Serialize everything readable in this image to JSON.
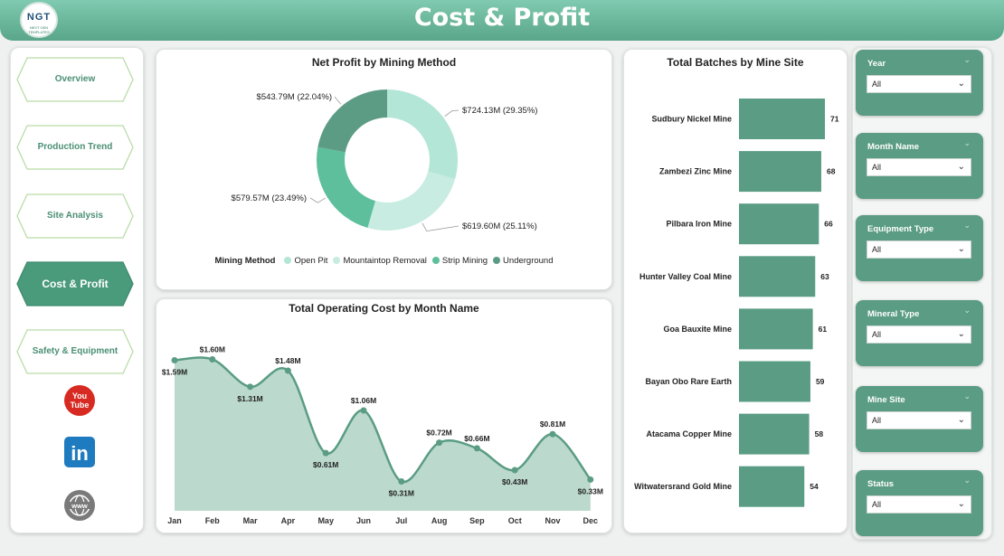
{
  "header": {
    "title": "Cost & Profit",
    "logo_text": "NGT",
    "logo_sub": "NEXT GEN TEMPLATES"
  },
  "nav": {
    "items": [
      {
        "label": "Overview",
        "active": false
      },
      {
        "label": "Production Trend",
        "active": false
      },
      {
        "label": "Site Analysis",
        "active": false
      },
      {
        "label": "Cost & Profit",
        "active": true
      },
      {
        "label": "Safety & Equipment",
        "active": false
      }
    ],
    "social": [
      {
        "icon": "youtube-icon",
        "text": "You Tube"
      },
      {
        "icon": "linkedin-icon",
        "text": "in"
      },
      {
        "icon": "website-icon",
        "text": "www"
      }
    ]
  },
  "donut": {
    "title": "Net Profit by Mining Method",
    "legend_title": "Mining Method",
    "slices": [
      {
        "name": "Open Pit",
        "label": "$724.13M (29.35%)",
        "color": "#b3e6d6"
      },
      {
        "name": "Mountaintop Removal",
        "label": "$619.60M (25.11%)",
        "color": "#c8ece1"
      },
      {
        "name": "Strip Mining",
        "label": "$579.57M (23.49%)",
        "color": "#5dbf9c"
      },
      {
        "name": "Underground",
        "label": "$543.79M (22.04%)",
        "color": "#5d9c84"
      }
    ]
  },
  "area": {
    "title": "Total Operating Cost by Month Name",
    "months": [
      "Jan",
      "Feb",
      "Mar",
      "Apr",
      "May",
      "Jun",
      "Jul",
      "Aug",
      "Sep",
      "Oct",
      "Nov",
      "Dec"
    ],
    "labels": [
      "$1.59M",
      "$1.60M",
      "$1.31M",
      "$1.48M",
      "$0.61M",
      "$1.06M",
      "$0.31M",
      "$0.72M",
      "$0.66M",
      "$0.43M",
      "$0.81M",
      "$0.33M"
    ]
  },
  "bars": {
    "title": "Total Batches by Mine Site",
    "sites": [
      "Sudbury Nickel Mine",
      "Zambezi Zinc Mine",
      "Pilbara Iron Mine",
      "Hunter Valley Coal Mine",
      "Goa Bauxite Mine",
      "Bayan Obo Rare Earth",
      "Atacama Copper Mine",
      "Witwatersrand Gold Mine"
    ],
    "labels": [
      "71",
      "68",
      "66",
      "63",
      "61",
      "59",
      "58",
      "54"
    ]
  },
  "slicers": [
    {
      "label": "Year",
      "value": "All"
    },
    {
      "label": "Month Name",
      "value": "All"
    },
    {
      "label": "Equipment Type",
      "value": "All"
    },
    {
      "label": "Mineral Type",
      "value": "All"
    },
    {
      "label": "Mine Site",
      "value": "All"
    },
    {
      "label": "Status",
      "value": "All"
    }
  ],
  "chart_data": [
    {
      "type": "pie",
      "title": "Net Profit by Mining Method",
      "categories": [
        "Open Pit",
        "Mountaintop Removal",
        "Strip Mining",
        "Underground"
      ],
      "values": [
        724.13,
        619.6,
        579.57,
        543.79
      ],
      "percent": [
        29.35,
        25.11,
        23.49,
        22.04
      ],
      "unit": "$M",
      "legend": "bottom"
    },
    {
      "type": "area",
      "title": "Total Operating Cost by Month Name",
      "categories": [
        "Jan",
        "Feb",
        "Mar",
        "Apr",
        "May",
        "Jun",
        "Jul",
        "Aug",
        "Sep",
        "Oct",
        "Nov",
        "Dec"
      ],
      "values": [
        1.59,
        1.6,
        1.31,
        1.48,
        0.61,
        1.06,
        0.31,
        0.72,
        0.66,
        0.43,
        0.81,
        0.33
      ],
      "unit": "$M",
      "color": "#5a9c84"
    },
    {
      "type": "bar",
      "orientation": "horizontal",
      "title": "Total Batches by Mine Site",
      "categories": [
        "Sudbury Nickel Mine",
        "Zambezi Zinc Mine",
        "Pilbara Iron Mine",
        "Hunter Valley Coal Mine",
        "Goa Bauxite Mine",
        "Bayan Obo Rare Earth",
        "Atacama Copper Mine",
        "Witwatersrand Gold Mine"
      ],
      "values": [
        71,
        68,
        66,
        63,
        61,
        59,
        58,
        54
      ],
      "xlim": [
        0,
        75
      ],
      "color": "#5a9c84"
    }
  ]
}
